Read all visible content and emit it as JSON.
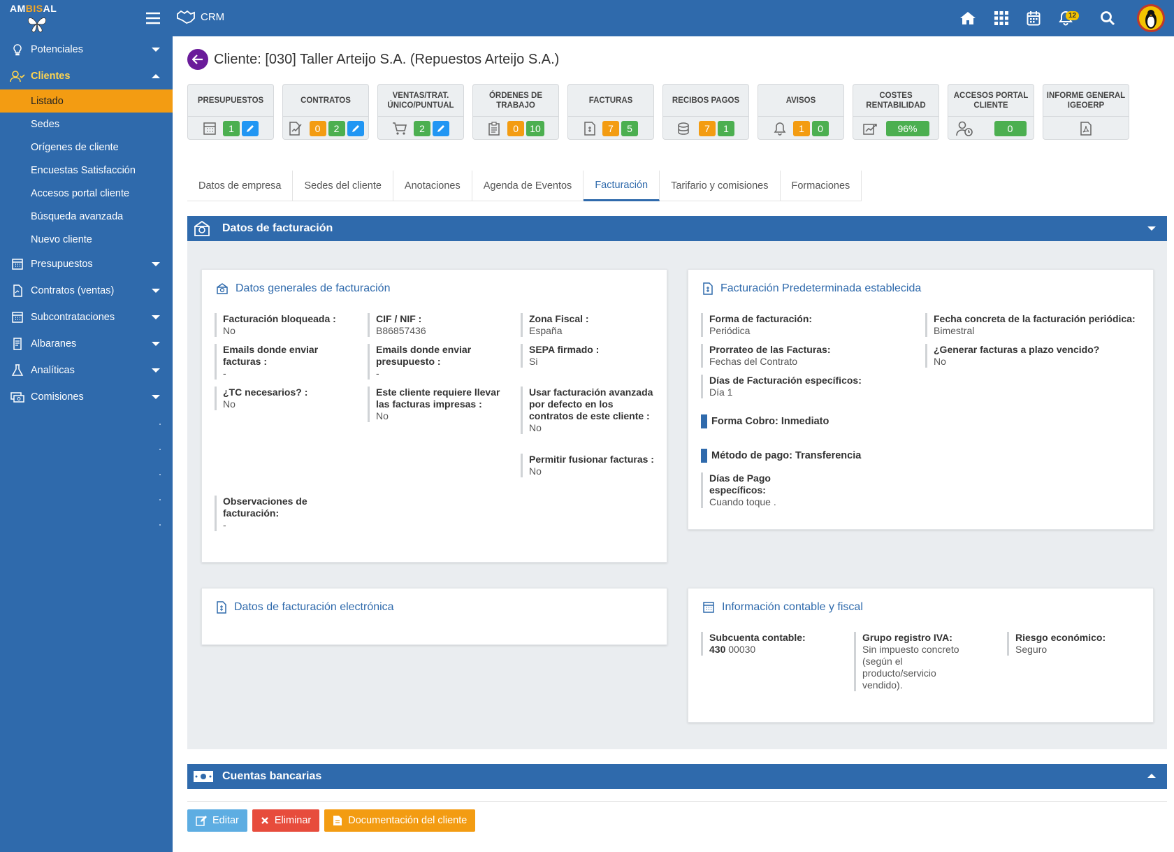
{
  "brand": {
    "logo_text_a": "AM",
    "logo_text_b": "BIS",
    "logo_text_c": "AL"
  },
  "header": {
    "app_name": "CRM",
    "notifications_count": "12"
  },
  "sidebar": {
    "items": [
      {
        "label": "Potenciales",
        "icon": "lightbulb-icon"
      },
      {
        "label": "Clientes",
        "icon": "users-icon"
      }
    ],
    "clientes_sub": [
      "Listado",
      "Sedes",
      "Orígenes de cliente",
      "Encuestas Satisfacción",
      "Accesos portal cliente",
      "Búsqueda avanzada",
      "Nuevo cliente"
    ],
    "items2": [
      {
        "label": "Presupuestos",
        "icon": "calculator-icon"
      },
      {
        "label": "Contratos (ventas)",
        "icon": "document-icon"
      },
      {
        "label": "Subcontrataciones",
        "icon": "calculator-icon"
      },
      {
        "label": "Albaranes",
        "icon": "receipt-icon"
      },
      {
        "label": "Analíticas",
        "icon": "flask-icon"
      },
      {
        "label": "Comisiones",
        "icon": "money-icon"
      }
    ]
  },
  "page": {
    "title": "Cliente: [030] Taller Arteijo S.A. (Repuestos Arteijo S.A.)"
  },
  "cards": [
    {
      "t": "PRESUPUESTOS",
      "pills": [
        [
          "1",
          "g"
        ],
        [
          "✎",
          "b"
        ]
      ]
    },
    {
      "t": "CONTRATOS",
      "pills": [
        [
          "0",
          "o"
        ],
        [
          "2",
          "g"
        ],
        [
          "✎",
          "b"
        ]
      ]
    },
    {
      "t": "VENTAS/TRAT. ÚNICO/PUNTUAL",
      "pills": [
        [
          "2",
          "g"
        ],
        [
          "✎",
          "b"
        ]
      ]
    },
    {
      "t": "ÓRDENES DE TRABAJO",
      "pills": [
        [
          "0",
          "o"
        ],
        [
          "10",
          "g"
        ]
      ]
    },
    {
      "t": "FACTURAS",
      "pills": [
        [
          "7",
          "o"
        ],
        [
          "5",
          "g"
        ]
      ]
    },
    {
      "t": "RECIBOS PAGOS",
      "pills": [
        [
          "7",
          "o"
        ],
        [
          "1",
          "g"
        ]
      ]
    },
    {
      "t": "AVISOS",
      "pills": [
        [
          "1",
          "o"
        ],
        [
          "0",
          "g"
        ]
      ]
    },
    {
      "t": "COSTES RENTABILIDAD",
      "pills": [
        [
          "96%",
          "g"
        ]
      ]
    },
    {
      "t": "ACCESOS PORTAL CLIENTE",
      "pills": [
        [
          "0",
          "g"
        ]
      ]
    },
    {
      "t": "INFORME GENERAL IGEOERP",
      "pills": []
    }
  ],
  "tabs": [
    "Datos de empresa",
    "Sedes del cliente",
    "Anotaciones",
    "Agenda de Eventos",
    "Facturación",
    "Tarifario y comisiones",
    "Formaciones"
  ],
  "billing": {
    "panel_title": "Datos de facturación",
    "general": {
      "title": "Datos generales de facturación",
      "facturacion_bloqueada": {
        "l": "Facturación bloqueada :",
        "v": "No"
      },
      "emails_facturas": {
        "l": "Emails donde enviar facturas :",
        "v": "-"
      },
      "tc": {
        "l": "¿TC necesarios? :",
        "v": "No"
      },
      "cif": {
        "l": "CIF / NIF :",
        "v": "B86857436"
      },
      "emails_presupuesto": {
        "l": "Emails donde enviar presupuesto :",
        "v": "-"
      },
      "impresas": {
        "l": "Este cliente requiere llevar las facturas impresas :",
        "v": "No"
      },
      "zona": {
        "l": "Zona Fiscal :",
        "v": "España"
      },
      "sepa": {
        "l": "SEPA firmado :",
        "v": "Si"
      },
      "avanzada": {
        "l": "Usar facturación avanzada por defecto en los contratos de este cliente :",
        "v": "No"
      },
      "fusionar": {
        "l": "Permitir fusionar facturas :",
        "v": "No"
      },
      "observaciones": {
        "l": "Observaciones de facturación:",
        "v": "-"
      }
    },
    "predeterminada": {
      "title": "Facturación Predeterminada establecida",
      "forma": {
        "l": "Forma de facturación:",
        "v": "Periódica"
      },
      "prorrateo": {
        "l": "Prorrateo de las Facturas:",
        "v": "Fechas del Contrato"
      },
      "dias": {
        "l": "Días de Facturación específicos:",
        "v": "Día 1"
      },
      "fecha": {
        "l": "Fecha concreta de la facturación periódica:",
        "v": "Bimestral"
      },
      "vencido": {
        "l": "¿Generar facturas a plazo vencido?",
        "v": "No"
      },
      "forma_cobro": "Forma Cobro: Inmediato",
      "metodo_pago": "Método de pago: Transferencia",
      "dias_pago": {
        "l": "Días de Pago específicos:",
        "v": "Cuando toque ."
      }
    },
    "electronica": {
      "title": "Datos de facturación electrónica"
    },
    "contable": {
      "title": "Información contable y fiscal",
      "subcuenta": {
        "l": "Subcuenta contable:",
        "v1": "430",
        "v2": " 00030"
      },
      "iva": {
        "l": "Grupo registro IVA:",
        "v": "Sin impuesto concreto (según el producto/servicio vendido)."
      },
      "riesgo": {
        "l": "Riesgo económico:",
        "v": "Seguro"
      }
    }
  },
  "bank": {
    "panel_title": "Cuentas bancarias"
  },
  "actions": {
    "edit": "Editar",
    "delete": "Eliminar",
    "docs": "Documentación del cliente"
  }
}
